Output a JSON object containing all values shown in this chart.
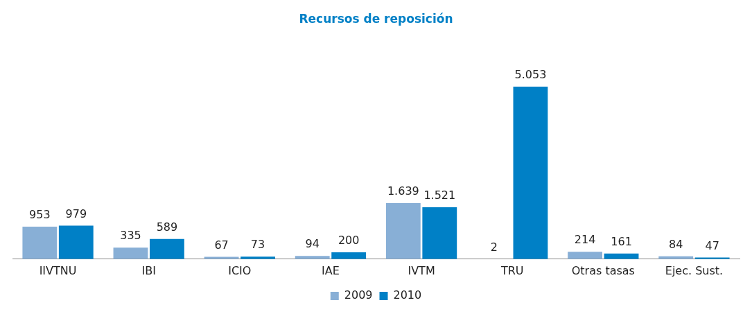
{
  "chart_data": {
    "type": "bar",
    "title": "Recursos de reposición",
    "categories": [
      "IIVTNU",
      "IBI",
      "ICIO",
      "IAE",
      "IVTM",
      "TRU",
      "Otras tasas",
      "Ejec. Sust."
    ],
    "series": [
      {
        "name": "2009",
        "color": "#88afd6",
        "values": [
          953,
          335,
          67,
          94,
          1639,
          2,
          214,
          84
        ],
        "value_labels": [
          "953",
          "335",
          "67",
          "94",
          "1.639",
          "2",
          "214",
          "84"
        ]
      },
      {
        "name": "2010",
        "color": "#0080c6",
        "values": [
          979,
          589,
          73,
          200,
          1521,
          5053,
          161,
          47
        ],
        "value_labels": [
          "979",
          "589",
          "73",
          "200",
          "1.521",
          "5.053",
          "161",
          "47"
        ]
      }
    ],
    "legend": "bottom",
    "grid": false
  }
}
